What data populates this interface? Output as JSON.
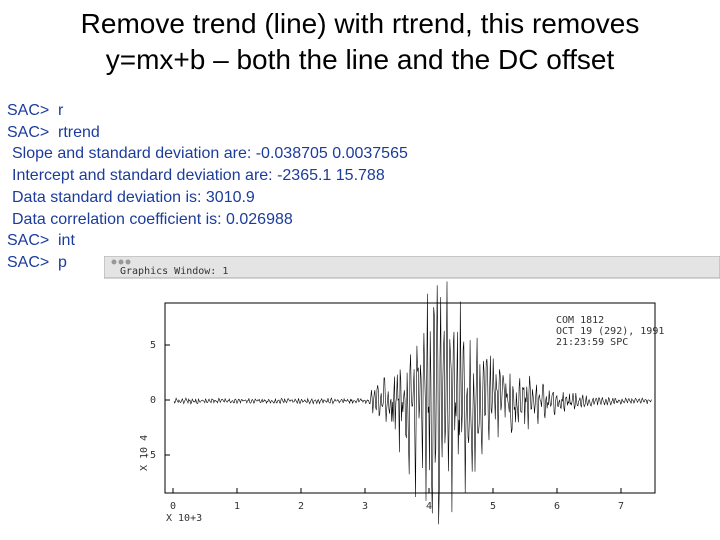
{
  "title": {
    "line1": "Remove trend (line) with rtrend, this removes",
    "line2": "y=mx+b – both the line and the DC offset"
  },
  "terminal": {
    "lines": [
      {
        "prompt": "SAC>",
        "text": "r"
      },
      {
        "prompt": "SAC>",
        "text": "rtrend"
      },
      {
        "text": "Slope and standard deviation are: -0.038705 0.0037565"
      },
      {
        "text": "Intercept and standard deviation are: -2365.1 15.788"
      },
      {
        "text": "Data standard deviation is: 3010.9"
      },
      {
        "text": "Data correlation coefficient is: 0.026988"
      },
      {
        "prompt": "SAC>",
        "text": "int"
      },
      {
        "prompt": "SAC>",
        "text": "p"
      }
    ]
  },
  "graphics_window": {
    "title": "Graphics Window: 1",
    "header": [
      "COM 1812",
      "OCT 19 (292), 1991",
      "21:23:59 SPC"
    ],
    "yticks": [
      "5",
      "0",
      "-5"
    ],
    "xticks": [
      "0",
      "1",
      "2",
      "3",
      "4",
      "5",
      "6",
      "7"
    ],
    "x_scale": "X 10+3",
    "y_scale": "X 10 4"
  }
}
